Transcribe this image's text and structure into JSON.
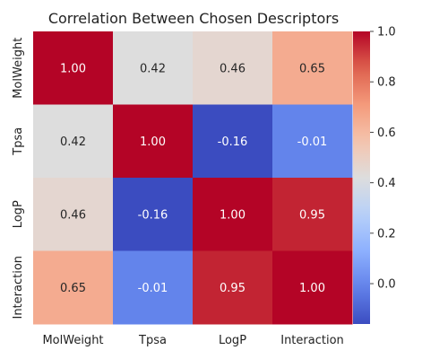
{
  "chart_data": {
    "type": "heatmap",
    "title": "Correlation Between Chosen Descriptors",
    "x_labels": [
      "MolWeight",
      "Tpsa",
      "LogP",
      "Interaction"
    ],
    "y_labels": [
      "MolWeight",
      "Tpsa",
      "LogP",
      "Interaction"
    ],
    "values": [
      [
        1.0,
        0.42,
        0.46,
        0.65
      ],
      [
        0.42,
        1.0,
        -0.16,
        -0.01
      ],
      [
        0.46,
        -0.16,
        1.0,
        0.95
      ],
      [
        0.65,
        -0.01,
        0.95,
        1.0
      ]
    ],
    "value_format": "0.00",
    "colormap": "coolwarm",
    "color_range": [
      -0.16,
      1.0
    ],
    "colorbar_ticks": [
      0.0,
      0.2,
      0.4,
      0.6,
      0.8,
      1.0
    ],
    "colorbar_tick_labels": [
      "0.0",
      "0.2",
      "0.4",
      "0.6",
      "0.8",
      "1.0"
    ]
  }
}
